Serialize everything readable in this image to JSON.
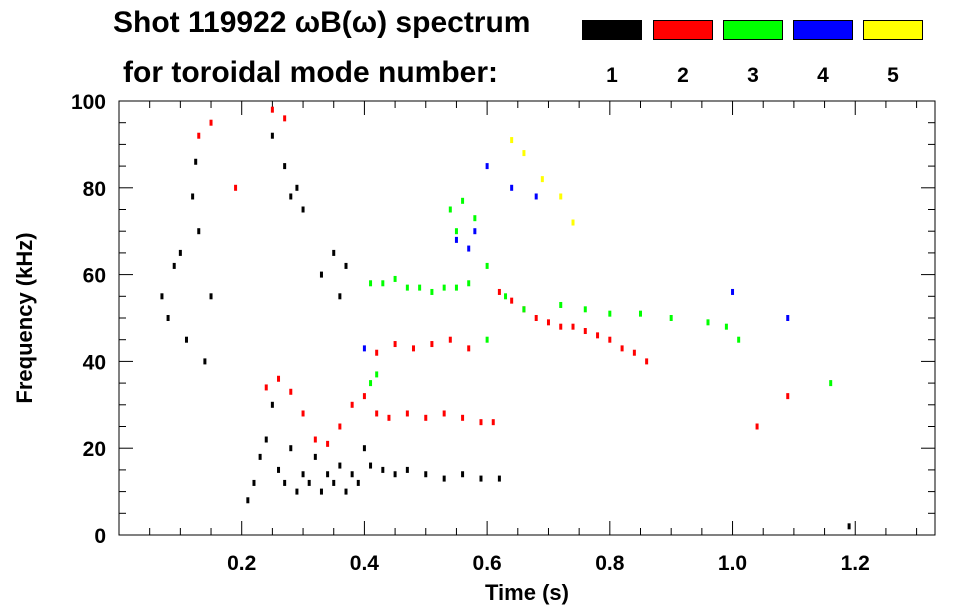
{
  "header": {
    "title": "Shot 119922 ωB(ω) spectrum",
    "subtitle": "for toroidal mode number:"
  },
  "legend": {
    "modes": [
      {
        "label": "1",
        "color": "#000000"
      },
      {
        "label": "2",
        "color": "#ff0000"
      },
      {
        "label": "3",
        "color": "#00ff00"
      },
      {
        "label": "4",
        "color": "#0000ff"
      },
      {
        "label": "5",
        "color": "#ffff00"
      }
    ]
  },
  "chart_data": {
    "type": "scatter",
    "title": "Shot 119922 ωB(ω) spectrum",
    "xlabel": "Time (s)",
    "ylabel": "Frequency (kHz)",
    "xlim": [
      0.0,
      1.33
    ],
    "ylim": [
      0,
      100
    ],
    "xticks": [
      "0.2",
      "0.4",
      "0.6",
      "0.8",
      "1.0",
      "1.2"
    ],
    "yticks": [
      "0",
      "20",
      "40",
      "60",
      "80",
      "100"
    ],
    "series": [
      {
        "name": "1",
        "color": "#000000",
        "points": [
          [
            0.07,
            55
          ],
          [
            0.08,
            50
          ],
          [
            0.09,
            62
          ],
          [
            0.1,
            65
          ],
          [
            0.11,
            45
          ],
          [
            0.12,
            78
          ],
          [
            0.125,
            86
          ],
          [
            0.13,
            70
          ],
          [
            0.14,
            40
          ],
          [
            0.15,
            55
          ],
          [
            0.21,
            8
          ],
          [
            0.22,
            12
          ],
          [
            0.23,
            18
          ],
          [
            0.24,
            22
          ],
          [
            0.25,
            30
          ],
          [
            0.26,
            15
          ],
          [
            0.27,
            12
          ],
          [
            0.28,
            20
          ],
          [
            0.29,
            10
          ],
          [
            0.3,
            14
          ],
          [
            0.31,
            12
          ],
          [
            0.32,
            18
          ],
          [
            0.33,
            10
          ],
          [
            0.34,
            14
          ],
          [
            0.35,
            12
          ],
          [
            0.36,
            16
          ],
          [
            0.37,
            10
          ],
          [
            0.38,
            14
          ],
          [
            0.39,
            12
          ],
          [
            0.4,
            20
          ],
          [
            0.41,
            16
          ],
          [
            0.43,
            15
          ],
          [
            0.45,
            14
          ],
          [
            0.47,
            15
          ],
          [
            0.5,
            14
          ],
          [
            0.53,
            13
          ],
          [
            0.56,
            14
          ],
          [
            0.59,
            13
          ],
          [
            0.62,
            13
          ],
          [
            0.27,
            85
          ],
          [
            0.28,
            78
          ],
          [
            0.29,
            80
          ],
          [
            0.3,
            75
          ],
          [
            0.33,
            60
          ],
          [
            0.35,
            65
          ],
          [
            0.36,
            55
          ],
          [
            0.37,
            62
          ],
          [
            0.25,
            92
          ],
          [
            1.19,
            2
          ]
        ]
      },
      {
        "name": "2",
        "color": "#ff0000",
        "points": [
          [
            0.13,
            92
          ],
          [
            0.15,
            95
          ],
          [
            0.19,
            80
          ],
          [
            0.24,
            34
          ],
          [
            0.26,
            36
          ],
          [
            0.28,
            33
          ],
          [
            0.3,
            28
          ],
          [
            0.32,
            22
          ],
          [
            0.34,
            21
          ],
          [
            0.36,
            25
          ],
          [
            0.38,
            30
          ],
          [
            0.4,
            32
          ],
          [
            0.42,
            28
          ],
          [
            0.44,
            27
          ],
          [
            0.47,
            28
          ],
          [
            0.5,
            27
          ],
          [
            0.53,
            28
          ],
          [
            0.56,
            27
          ],
          [
            0.59,
            26
          ],
          [
            0.61,
            26
          ],
          [
            0.42,
            42
          ],
          [
            0.45,
            44
          ],
          [
            0.48,
            43
          ],
          [
            0.51,
            44
          ],
          [
            0.54,
            45
          ],
          [
            0.57,
            43
          ],
          [
            0.62,
            56
          ],
          [
            0.64,
            54
          ],
          [
            0.66,
            52
          ],
          [
            0.68,
            50
          ],
          [
            0.7,
            49
          ],
          [
            0.72,
            48
          ],
          [
            0.74,
            48
          ],
          [
            0.76,
            47
          ],
          [
            0.78,
            46
          ],
          [
            0.8,
            45
          ],
          [
            0.82,
            43
          ],
          [
            0.84,
            42
          ],
          [
            0.86,
            40
          ],
          [
            0.25,
            98
          ],
          [
            0.27,
            96
          ],
          [
            1.04,
            25
          ],
          [
            1.09,
            32
          ]
        ]
      },
      {
        "name": "3",
        "color": "#00ff00",
        "points": [
          [
            0.41,
            35
          ],
          [
            0.42,
            37
          ],
          [
            0.41,
            58
          ],
          [
            0.43,
            58
          ],
          [
            0.45,
            59
          ],
          [
            0.47,
            57
          ],
          [
            0.49,
            57
          ],
          [
            0.51,
            56
          ],
          [
            0.53,
            57
          ],
          [
            0.55,
            57
          ],
          [
            0.57,
            58
          ],
          [
            0.58,
            73
          ],
          [
            0.56,
            77
          ],
          [
            0.54,
            75
          ],
          [
            0.55,
            70
          ],
          [
            0.6,
            62
          ],
          [
            0.63,
            55
          ],
          [
            0.66,
            52
          ],
          [
            0.72,
            53
          ],
          [
            0.76,
            52
          ],
          [
            0.8,
            51
          ],
          [
            0.85,
            51
          ],
          [
            0.9,
            50
          ],
          [
            0.96,
            49
          ],
          [
            0.99,
            48
          ],
          [
            1.01,
            45
          ],
          [
            1.16,
            35
          ],
          [
            0.6,
            45
          ]
        ]
      },
      {
        "name": "4",
        "color": "#0000ff",
        "points": [
          [
            0.4,
            43
          ],
          [
            0.55,
            68
          ],
          [
            0.57,
            66
          ],
          [
            0.58,
            70
          ],
          [
            0.6,
            85
          ],
          [
            0.64,
            80
          ],
          [
            0.68,
            78
          ],
          [
            1.0,
            56
          ],
          [
            1.09,
            50
          ]
        ]
      },
      {
        "name": "5",
        "color": "#ffff00",
        "points": [
          [
            0.64,
            91
          ],
          [
            0.66,
            88
          ],
          [
            0.69,
            82
          ],
          [
            0.72,
            78
          ],
          [
            0.74,
            72
          ]
        ]
      }
    ]
  }
}
